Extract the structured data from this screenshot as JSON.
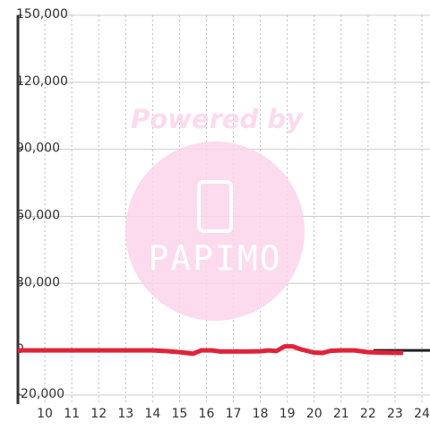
{
  "chart_data": {
    "type": "line",
    "watermark": {
      "top": "Powered by",
      "logo": "PAPIMO"
    },
    "xlim": [
      9,
      24.3
    ],
    "xticks": [
      10,
      11,
      12,
      13,
      14,
      15,
      16,
      17,
      18,
      19,
      20,
      21,
      22,
      23,
      24
    ],
    "ylim": [
      -24000,
      150000
    ],
    "yticks": [
      {
        "value": -20000,
        "label": "-20,000"
      },
      0,
      {
        "value": 30000,
        "label": "30,000"
      },
      {
        "value": 60000,
        "label": "60,000"
      },
      {
        "value": 90000,
        "label": "90,000"
      },
      {
        "value": 120000,
        "label": "120,000"
      },
      {
        "value": 150000,
        "label": "150,000"
      }
    ],
    "grid": true,
    "series": [
      {
        "color": "#222222",
        "x": [
          22.2,
          24.3
        ],
        "values": [
          0,
          0
        ]
      },
      {
        "color": "#e0233a",
        "x": [
          9,
          10,
          11,
          12,
          13,
          14,
          14.5,
          15,
          15.5,
          15.8,
          16.2,
          16.5,
          17,
          17.5,
          18,
          18.3,
          18.6,
          18.9,
          19.2,
          19.5,
          20,
          20.3,
          20.6,
          21,
          21.5,
          22,
          22.5,
          23,
          23.3
        ],
        "values": [
          0,
          0,
          0,
          0,
          0,
          0,
          -300,
          -800,
          -1500,
          0,
          0,
          -500,
          -500,
          -500,
          -400,
          0,
          -300,
          1800,
          1800,
          500,
          -1000,
          -1200,
          -200,
          0,
          0,
          -800,
          -1000,
          -1100,
          -1100
        ]
      }
    ]
  }
}
